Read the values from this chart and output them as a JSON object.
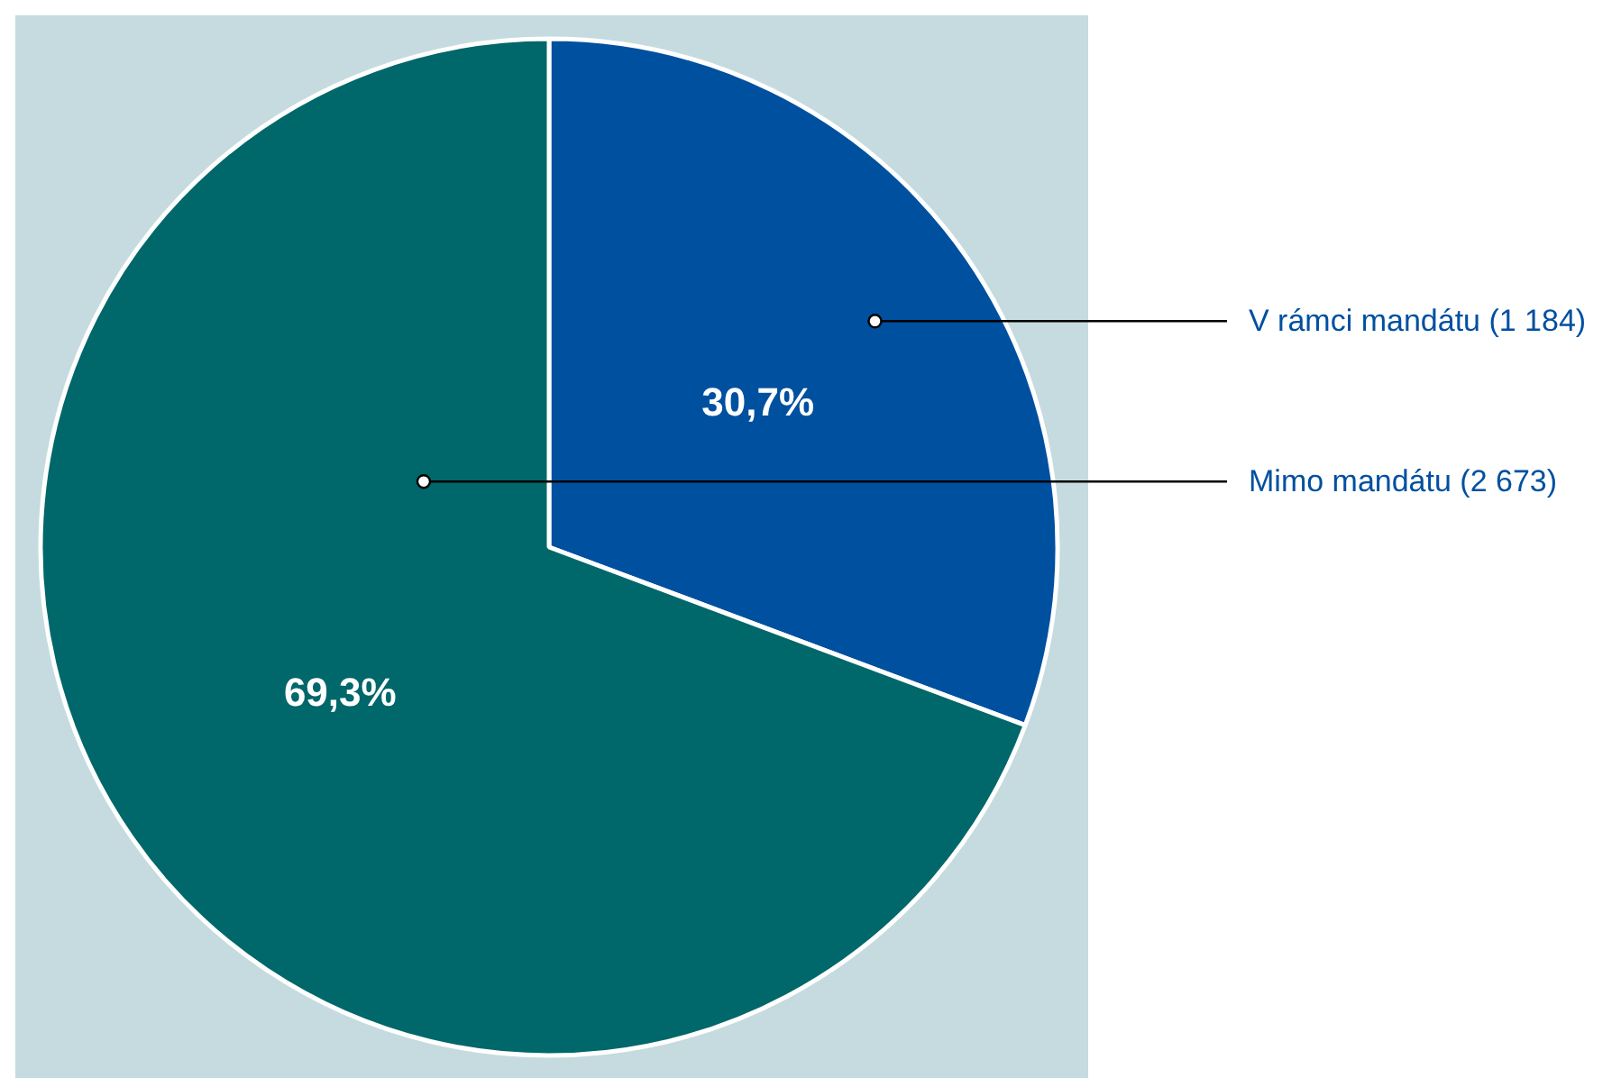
{
  "chart_data": {
    "type": "pie",
    "categories": [
      "V rámci mandátu (1 184)",
      "Mimo mandátu (2 673)"
    ],
    "values": [
      30.7,
      69.3
    ],
    "colors": [
      "#0050a0",
      "#00676a"
    ],
    "value_labels": [
      "30,7%",
      "69,3%"
    ]
  }
}
